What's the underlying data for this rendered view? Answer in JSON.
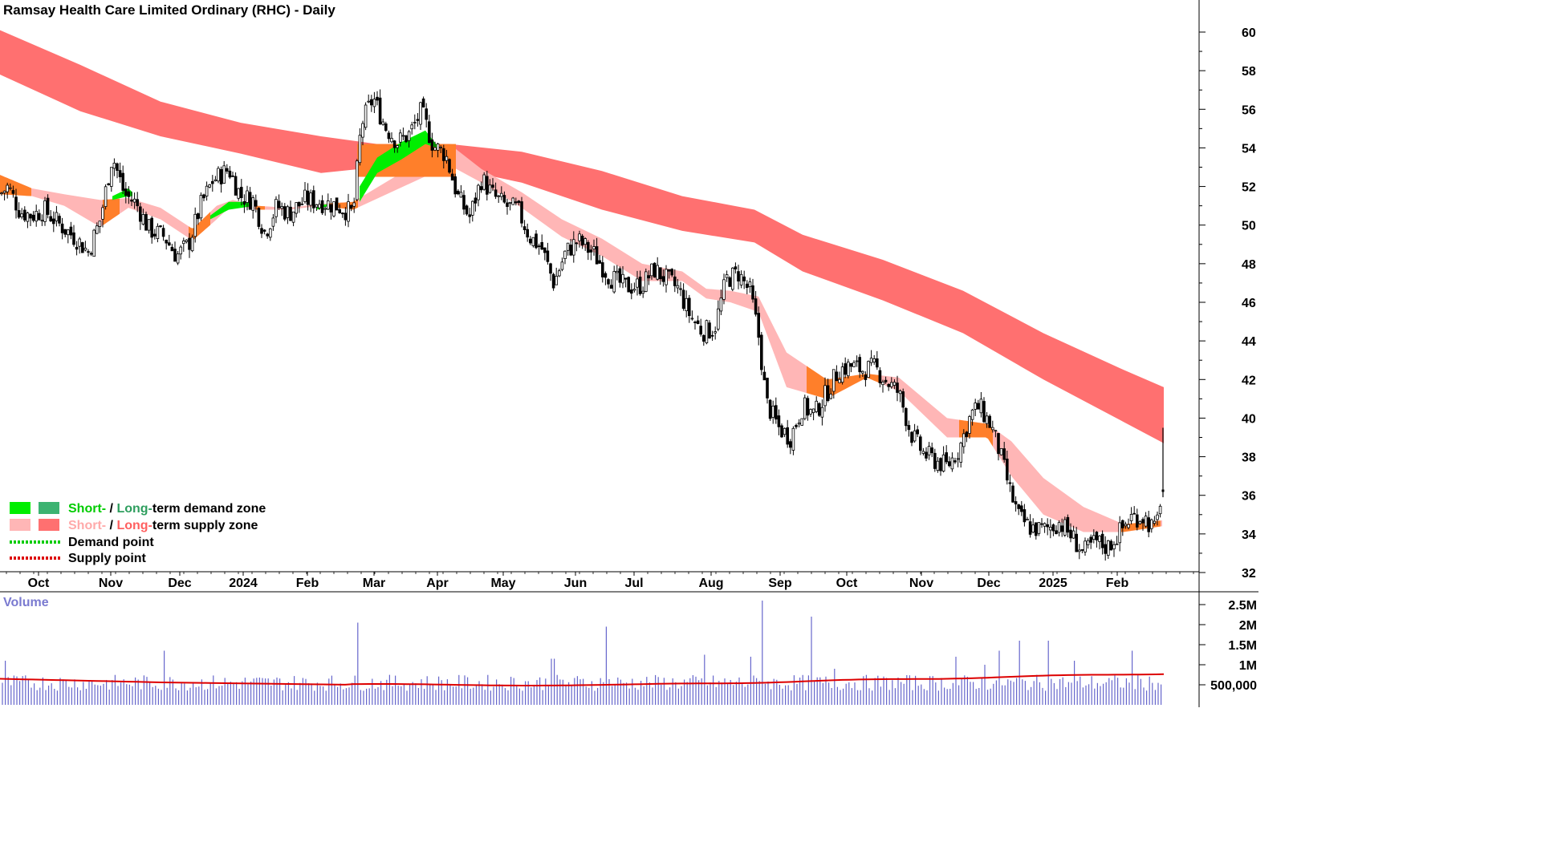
{
  "chart_title": "Ramsay Health Care Limited Ordinary (RHC) - Daily",
  "colors": {
    "short_demand": "#00ee00",
    "long_demand": "#3cb371",
    "short_supply": "#ffb6b6",
    "long_supply": "#ff7070",
    "overlap_zone": "#ff7f2a",
    "demand_point": "#00cc00",
    "supply_point": "#dd0000",
    "volume_bar": "#6666cc",
    "volume_ma": "#dd0000"
  },
  "legend": {
    "row1": {
      "short": "Short-",
      "sep": " / ",
      "long": "Long-",
      "rest": "term demand zone"
    },
    "row2": {
      "short": "Short-",
      "sep": " / ",
      "long": "Long-",
      "rest": "term supply zone"
    },
    "row3": "Demand point",
    "row4": "Supply point"
  },
  "volume_label": "Volume",
  "chart_data": {
    "type": "candlestick",
    "price_axis": {
      "min": 32,
      "max": 60,
      "ticks": [
        "60",
        "58",
        "56",
        "54",
        "52",
        "50",
        "48",
        "46",
        "44",
        "42",
        "40",
        "38",
        "36",
        "34",
        "32"
      ]
    },
    "volume_axis": {
      "ticks": [
        "2.5M",
        "2M",
        "1.5M",
        "1M",
        "500,000"
      ],
      "values": [
        2500000,
        2000000,
        1500000,
        1000000,
        500000
      ]
    },
    "x_labels": [
      "Oct",
      "Nov",
      "Dec",
      "2024",
      "Feb",
      "Mar",
      "Apr",
      "May",
      "Jun",
      "Jul",
      "Aug",
      "Sep",
      "Oct",
      "Nov",
      "Dec",
      "2025",
      "Feb"
    ],
    "price_path": [
      {
        "d": 0,
        "p": 51.6
      },
      {
        "d": 10,
        "p": 52.0
      },
      {
        "d": 25,
        "p": 50.7
      },
      {
        "d": 40,
        "p": 50.5
      },
      {
        "d": 55,
        "p": 50.8
      },
      {
        "d": 75,
        "p": 50.0
      },
      {
        "d": 95,
        "p": 49.3
      },
      {
        "d": 110,
        "p": 48.6
      },
      {
        "d": 125,
        "p": 50.3
      },
      {
        "d": 140,
        "p": 53.6
      },
      {
        "d": 155,
        "p": 51.6
      },
      {
        "d": 170,
        "p": 51.1
      },
      {
        "d": 185,
        "p": 49.8
      },
      {
        "d": 205,
        "p": 49.4
      },
      {
        "d": 220,
        "p": 48.4
      },
      {
        "d": 235,
        "p": 49.0
      },
      {
        "d": 250,
        "p": 51.0
      },
      {
        "d": 265,
        "p": 52.3
      },
      {
        "d": 285,
        "p": 52.9
      },
      {
        "d": 300,
        "p": 51.5
      },
      {
        "d": 315,
        "p": 51.3
      },
      {
        "d": 330,
        "p": 49.6
      },
      {
        "d": 345,
        "p": 51.0
      },
      {
        "d": 360,
        "p": 50.6
      },
      {
        "d": 380,
        "p": 51.3
      },
      {
        "d": 400,
        "p": 51.2
      },
      {
        "d": 420,
        "p": 51.0
      },
      {
        "d": 440,
        "p": 50.6
      },
      {
        "d": 450,
        "p": 55.2
      },
      {
        "d": 465,
        "p": 56.6
      },
      {
        "d": 480,
        "p": 55.1
      },
      {
        "d": 495,
        "p": 54.3
      },
      {
        "d": 510,
        "p": 54.7
      },
      {
        "d": 525,
        "p": 55.9
      },
      {
        "d": 540,
        "p": 54.1
      },
      {
        "d": 555,
        "p": 53.7
      },
      {
        "d": 570,
        "p": 51.5
      },
      {
        "d": 585,
        "p": 50.4
      },
      {
        "d": 600,
        "p": 52.4
      },
      {
        "d": 615,
        "p": 51.5
      },
      {
        "d": 630,
        "p": 51.0
      },
      {
        "d": 645,
        "p": 50.8
      },
      {
        "d": 660,
        "p": 49.4
      },
      {
        "d": 675,
        "p": 48.8
      },
      {
        "d": 690,
        "p": 47.0
      },
      {
        "d": 705,
        "p": 48.6
      },
      {
        "d": 720,
        "p": 49.2
      },
      {
        "d": 740,
        "p": 48.5
      },
      {
        "d": 760,
        "p": 47.3
      },
      {
        "d": 780,
        "p": 46.8
      },
      {
        "d": 800,
        "p": 46.9
      },
      {
        "d": 815,
        "p": 47.7
      },
      {
        "d": 830,
        "p": 47.2
      },
      {
        "d": 845,
        "p": 46.7
      },
      {
        "d": 860,
        "p": 45.3
      },
      {
        "d": 875,
        "p": 44.5
      },
      {
        "d": 890,
        "p": 44.6
      },
      {
        "d": 905,
        "p": 47.2
      },
      {
        "d": 920,
        "p": 47.5
      },
      {
        "d": 935,
        "p": 46.5
      },
      {
        "d": 945,
        "p": 44.3
      },
      {
        "d": 955,
        "p": 40.8
      },
      {
        "d": 970,
        "p": 39.5
      },
      {
        "d": 985,
        "p": 39.0
      },
      {
        "d": 1000,
        "p": 40.6
      },
      {
        "d": 1015,
        "p": 40.2
      },
      {
        "d": 1030,
        "p": 41.3
      },
      {
        "d": 1045,
        "p": 42.5
      },
      {
        "d": 1060,
        "p": 42.7
      },
      {
        "d": 1075,
        "p": 42.5
      },
      {
        "d": 1090,
        "p": 42.6
      },
      {
        "d": 1105,
        "p": 41.9
      },
      {
        "d": 1120,
        "p": 41.3
      },
      {
        "d": 1135,
        "p": 39.2
      },
      {
        "d": 1150,
        "p": 38.2
      },
      {
        "d": 1165,
        "p": 37.8
      },
      {
        "d": 1180,
        "p": 37.5
      },
      {
        "d": 1195,
        "p": 38.4
      },
      {
        "d": 1210,
        "p": 40.2
      },
      {
        "d": 1220,
        "p": 40.6
      },
      {
        "d": 1235,
        "p": 39.6
      },
      {
        "d": 1245,
        "p": 38.3
      },
      {
        "d": 1260,
        "p": 36.0
      },
      {
        "d": 1270,
        "p": 34.8
      },
      {
        "d": 1285,
        "p": 34.3
      },
      {
        "d": 1300,
        "p": 34.2
      },
      {
        "d": 1320,
        "p": 34.6
      },
      {
        "d": 1335,
        "p": 33.9
      },
      {
        "d": 1350,
        "p": 33.0
      },
      {
        "d": 1365,
        "p": 33.6
      },
      {
        "d": 1380,
        "p": 33.3
      },
      {
        "d": 1395,
        "p": 34.1
      },
      {
        "d": 1410,
        "p": 34.9
      },
      {
        "d": 1425,
        "p": 34.9
      },
      {
        "d": 1440,
        "p": 34.1
      },
      {
        "d": 1447,
        "p": 36.2
      }
    ],
    "long_supply_zone": [
      {
        "d": 0,
        "top": 60.1,
        "bot": 57.8
      },
      {
        "d": 100,
        "top": 58.3,
        "bot": 55.9
      },
      {
        "d": 200,
        "top": 56.4,
        "bot": 54.6
      },
      {
        "d": 300,
        "top": 55.3,
        "bot": 53.7
      },
      {
        "d": 400,
        "top": 54.6,
        "bot": 52.7
      },
      {
        "d": 470,
        "top": 54.2,
        "bot": 53.0
      },
      {
        "d": 560,
        "top": 54.2,
        "bot": 53.0
      },
      {
        "d": 650,
        "top": 53.8,
        "bot": 52.2
      },
      {
        "d": 750,
        "top": 52.8,
        "bot": 50.8
      },
      {
        "d": 850,
        "top": 51.5,
        "bot": 49.7
      },
      {
        "d": 940,
        "top": 50.8,
        "bot": 49.1
      },
      {
        "d": 1000,
        "top": 49.5,
        "bot": 47.6
      },
      {
        "d": 1100,
        "top": 48.2,
        "bot": 46.1
      },
      {
        "d": 1200,
        "top": 46.6,
        "bot": 44.4
      },
      {
        "d": 1300,
        "top": 44.4,
        "bot": 42.0
      },
      {
        "d": 1400,
        "top": 42.5,
        "bot": 39.8
      },
      {
        "d": 1450,
        "top": 41.6,
        "bot": 38.7
      }
    ],
    "short_supply_zone": [
      {
        "d": 0,
        "top": 52.6,
        "bot": 51.6
      },
      {
        "d": 40,
        "top": 51.9,
        "bot": 51.5
      },
      {
        "d": 80,
        "top": 51.6,
        "bot": 51.0
      },
      {
        "d": 125,
        "top": 51.3,
        "bot": 49.9
      },
      {
        "d": 160,
        "top": 51.4,
        "bot": 50.9
      },
      {
        "d": 200,
        "top": 50.9,
        "bot": 50.3
      },
      {
        "d": 240,
        "top": 49.8,
        "bot": 49.2
      },
      {
        "d": 270,
        "top": 51.0,
        "bot": 50.3
      },
      {
        "d": 290,
        "top": 51.3,
        "bot": 51.1
      },
      {
        "d": 320,
        "top": 51.0,
        "bot": 50.8
      },
      {
        "d": 360,
        "top": 50.9,
        "bot": 50.8
      },
      {
        "d": 400,
        "top": 51.1,
        "bot": 51.0
      },
      {
        "d": 440,
        "top": 51.2,
        "bot": 50.8
      },
      {
        "d": 560,
        "top": 54.2,
        "bot": 53.1
      },
      {
        "d": 600,
        "top": 52.9,
        "bot": 52.2
      },
      {
        "d": 650,
        "top": 51.7,
        "bot": 50.9
      },
      {
        "d": 700,
        "top": 50.3,
        "bot": 49.4
      },
      {
        "d": 750,
        "top": 49.3,
        "bot": 48.4
      },
      {
        "d": 800,
        "top": 48.0,
        "bot": 47.1
      },
      {
        "d": 850,
        "top": 47.6,
        "bot": 47.1
      },
      {
        "d": 880,
        "top": 46.7,
        "bot": 46.2
      },
      {
        "d": 910,
        "top": 46.6,
        "bot": 46.0
      },
      {
        "d": 945,
        "top": 46.3,
        "bot": 45.5
      },
      {
        "d": 980,
        "top": 43.4,
        "bot": 41.6
      },
      {
        "d": 1030,
        "top": 42.0,
        "bot": 41.0
      },
      {
        "d": 1080,
        "top": 42.3,
        "bot": 42.1
      },
      {
        "d": 1120,
        "top": 42.1,
        "bot": 41.4
      },
      {
        "d": 1180,
        "top": 40.0,
        "bot": 39.0
      },
      {
        "d": 1230,
        "top": 39.7,
        "bot": 39.0
      },
      {
        "d": 1260,
        "top": 38.8,
        "bot": 37.0
      },
      {
        "d": 1300,
        "top": 36.9,
        "bot": 35.0
      },
      {
        "d": 1350,
        "top": 35.4,
        "bot": 34.1
      },
      {
        "d": 1400,
        "top": 34.5,
        "bot": 34.1
      },
      {
        "d": 1448,
        "top": 34.7,
        "bot": 34.4
      }
    ],
    "overlap_zones": [
      {
        "from": 0,
        "to": 40
      },
      {
        "from": 128,
        "to": 150
      },
      {
        "from": 235,
        "to": 262
      },
      {
        "from": 318,
        "to": 330
      },
      {
        "from": 410,
        "to": 448
      },
      {
        "from": 1005,
        "to": 1100
      },
      {
        "from": 1195,
        "to": 1238
      },
      {
        "from": 1395,
        "to": 1448
      }
    ],
    "long_overlap_zone": {
      "from": 445,
      "to": 568,
      "top": 54.2,
      "bot": 52.5
    },
    "short_demand_zones": [
      {
        "points": [
          {
            "d": 140,
            "top": 51.5,
            "bot": 51.3
          },
          {
            "d": 160,
            "top": 51.9,
            "bot": 51.5
          },
          {
            "d": 165,
            "top": 51.7,
            "bot": 51.5
          }
        ]
      },
      {
        "points": [
          {
            "d": 262,
            "top": 50.5,
            "bot": 50.3
          },
          {
            "d": 285,
            "top": 51.2,
            "bot": 50.8
          },
          {
            "d": 318,
            "top": 51.2,
            "bot": 51.0
          }
        ]
      },
      {
        "points": [
          {
            "d": 395,
            "top": 51.0,
            "bot": 50.8
          },
          {
            "d": 410,
            "top": 51.1,
            "bot": 51.0
          }
        ]
      },
      {
        "points": [
          {
            "d": 448,
            "top": 52.0,
            "bot": 51.2
          },
          {
            "d": 470,
            "top": 53.5,
            "bot": 52.7
          },
          {
            "d": 500,
            "top": 54.3,
            "bot": 53.4
          },
          {
            "d": 530,
            "top": 54.9,
            "bot": 54.2
          },
          {
            "d": 545,
            "top": 54.1,
            "bot": 54.0
          }
        ]
      }
    ],
    "volume_ma": {
      "start": 650000,
      "low": 500000,
      "end": 780000
    }
  }
}
